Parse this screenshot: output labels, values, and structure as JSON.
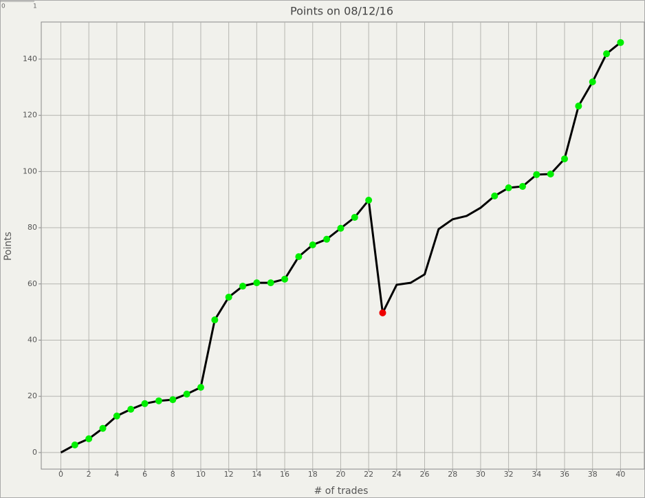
{
  "chart_data": {
    "type": "line",
    "title": "Points on 08/12/16",
    "x_label": "# of trades",
    "y_label": "Points",
    "corner_ruler": [
      0,
      1
    ],
    "x": [
      0,
      1,
      2,
      3,
      4,
      5,
      6,
      7,
      8,
      9,
      10,
      11,
      12,
      13,
      14,
      15,
      16,
      17,
      18,
      19,
      20,
      21,
      22,
      23,
      24,
      25,
      26,
      27,
      28,
      29,
      30,
      31,
      32,
      33,
      34,
      35,
      36,
      37,
      38,
      39,
      40
    ],
    "series": [
      {
        "color": "#000000",
        "values": [
          0,
          2.7,
          4.9,
          8.6,
          13.0,
          15.4,
          17.4,
          18.4,
          18.8,
          20.8,
          23.2,
          47.2,
          55.3,
          59.2,
          60.4,
          60.4,
          61.7,
          69.7,
          73.9,
          75.9,
          79.8,
          83.7,
          89.8,
          49.7,
          59.7,
          60.4,
          63.4,
          79.5,
          83.0,
          84.2,
          87.1,
          91.3,
          94.2,
          94.7,
          98.9,
          99.1,
          104.5,
          123.3,
          131.9,
          141.9,
          145.9
        ],
        "marker_colors": [
          null,
          "#00ee00",
          "#00ee00",
          "#00ee00",
          "#00ee00",
          "#00ee00",
          "#00ee00",
          "#00ee00",
          "#00ee00",
          "#00ee00",
          "#00ee00",
          "#00ee00",
          "#00ee00",
          "#00ee00",
          "#00ee00",
          "#00ee00",
          "#00ee00",
          "#00ee00",
          "#00ee00",
          "#00ee00",
          "#00ee00",
          "#00ee00",
          "#00ee00",
          "#ee0000",
          null,
          null,
          null,
          null,
          null,
          null,
          null,
          "#00ee00",
          "#00ee00",
          "#00ee00",
          "#00ee00",
          "#00ee00",
          "#00ee00",
          "#00ee00",
          "#00ee00",
          "#00ee00",
          "#00ee00"
        ]
      }
    ],
    "xlim": [
      -1.4,
      41.7
    ],
    "ylim": [
      -5.9,
      153.2
    ],
    "xticks": [
      0,
      2,
      4,
      6,
      8,
      10,
      12,
      14,
      16,
      18,
      20,
      22,
      24,
      26,
      28,
      30,
      32,
      34,
      36,
      38,
      40
    ],
    "yticks": [
      0,
      20,
      40,
      60,
      80,
      100,
      120,
      140
    ],
    "grid": true
  }
}
